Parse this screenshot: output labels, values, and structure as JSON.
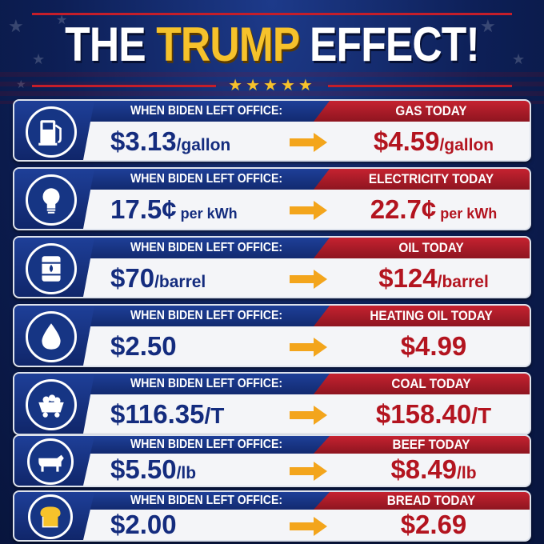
{
  "header": {
    "title_part1": "THE ",
    "title_part2": "TRUMP",
    "title_part3": " EFFECT!",
    "stars": "★★★★★"
  },
  "colors": {
    "navy": "#142c7e",
    "red": "#b3141f",
    "gold": "#f6c22b"
  },
  "rows": [
    {
      "icon": "gas-pump-icon",
      "left_label": "WHEN BIDEN LEFT OFFICE:",
      "old_value": "$3.13",
      "old_unit": "/gallon",
      "right_label": "GAS TODAY",
      "new_value": "$4.59",
      "new_unit": "/gallon"
    },
    {
      "icon": "lightbulb-icon",
      "left_label": "WHEN BIDEN LEFT OFFICE:",
      "old_value": "17.5¢",
      "old_unit": " per kWh",
      "right_label": "ELECTRICITY TODAY",
      "new_value": "22.7¢",
      "new_unit": " per kWh"
    },
    {
      "icon": "oil-barrel-icon",
      "left_label": "WHEN BIDEN LEFT OFFICE:",
      "old_value": "$70",
      "old_unit": "/barrel",
      "right_label": "OIL TODAY",
      "new_value": "$124",
      "new_unit": "/barrel"
    },
    {
      "icon": "drop-icon",
      "left_label": "WHEN BIDEN LEFT OFFICE:",
      "old_value": "$2.50",
      "old_unit": "",
      "right_label": "HEATING OIL TODAY",
      "new_value": "$4.99",
      "new_unit": ""
    },
    {
      "icon": "coal-cart-icon",
      "left_label": "WHEN BIDEN LEFT OFFICE:",
      "old_value": "$116.35",
      "old_unit": "/T",
      "right_label": "COAL TODAY",
      "new_value": "$158.40",
      "new_unit": "/T"
    },
    {
      "icon": "cow-icon",
      "left_label": "WHEN BIDEN LEFT OFFICE:",
      "old_value": "$5.50",
      "old_unit": "/lb",
      "right_label": "BEEF TODAY",
      "new_value": "$8.49",
      "new_unit": "/lb"
    },
    {
      "icon": "bread-icon",
      "left_label": "WHEN BIDEN LEFT OFFICE:",
      "old_value": "$2.00",
      "old_unit": "",
      "right_label": "BREAD TODAY",
      "new_value": "$2.69",
      "new_unit": ""
    }
  ]
}
